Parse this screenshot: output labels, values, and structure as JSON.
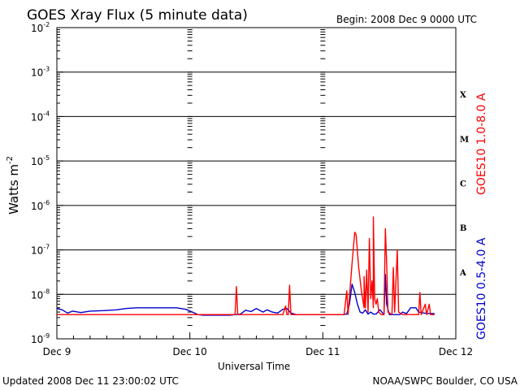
{
  "chart_data": {
    "type": "line",
    "title": "GOES Xray Flux (5 minute data)",
    "begin_label": "Begin:  2008 Dec 9 0000 UTC",
    "xlabel": "Universal Time",
    "ylabel": "Watts m",
    "ylabel_sup": "-2",
    "scale": "log",
    "ylim": [
      1e-09,
      0.01
    ],
    "y_ticks": [
      {
        "exp": -9,
        "label": "10",
        "sup": "-9"
      },
      {
        "exp": -8,
        "label": "10",
        "sup": "-8"
      },
      {
        "exp": -7,
        "label": "10",
        "sup": "-7"
      },
      {
        "exp": -6,
        "label": "10",
        "sup": "-6"
      },
      {
        "exp": -5,
        "label": "10",
        "sup": "-5"
      },
      {
        "exp": -4,
        "label": "10",
        "sup": "-4"
      },
      {
        "exp": -3,
        "label": "10",
        "sup": "-3"
      },
      {
        "exp": -2,
        "label": "10",
        "sup": "-2"
      }
    ],
    "x_ticks": [
      "Dec 9",
      "Dec 10",
      "Dec 11",
      "Dec 12"
    ],
    "xlim_days": [
      0,
      3
    ],
    "flare_classes": [
      {
        "label": "X",
        "exp": -4
      },
      {
        "label": "M",
        "exp": -5
      },
      {
        "label": "C",
        "exp": -6
      },
      {
        "label": "B",
        "exp": -7
      },
      {
        "label": "A",
        "exp": -8
      }
    ],
    "grid": true,
    "series": [
      {
        "name": "GOES10 1.0-8.0 A",
        "color": "#ff0000",
        "points": [
          [
            0.0,
            3.5e-09
          ],
          [
            0.35,
            3.5e-09
          ],
          [
            0.7,
            3.5e-09
          ],
          [
            1.2,
            3.5e-09
          ],
          [
            1.34,
            3.5e-09
          ],
          [
            1.35,
            1.5e-08
          ],
          [
            1.36,
            3.5e-09
          ],
          [
            1.7,
            3.5e-09
          ],
          [
            1.72,
            5.5e-09
          ],
          [
            1.73,
            3.5e-09
          ],
          [
            1.74,
            3.5e-09
          ],
          [
            1.75,
            1.6e-08
          ],
          [
            1.76,
            3.5e-09
          ],
          [
            2.16,
            3.5e-09
          ],
          [
            2.18,
            1.2e-08
          ],
          [
            2.19,
            3.5e-09
          ],
          [
            2.22,
            5e-08
          ],
          [
            2.24,
            2.5e-07
          ],
          [
            2.25,
            2.2e-07
          ],
          [
            2.27,
            4e-08
          ],
          [
            2.29,
            1.2e-08
          ],
          [
            2.31,
            5e-09
          ],
          [
            2.31,
            2.5e-08
          ],
          [
            2.32,
            5e-09
          ],
          [
            2.33,
            3.5e-08
          ],
          [
            2.34,
            4e-09
          ],
          [
            2.35,
            1.8e-07
          ],
          [
            2.36,
            8e-09
          ],
          [
            2.37,
            2e-08
          ],
          [
            2.38,
            5e-09
          ],
          [
            2.38,
            5.5e-07
          ],
          [
            2.39,
            8e-09
          ],
          [
            2.4,
            6e-09
          ],
          [
            2.41,
            8e-09
          ],
          [
            2.42,
            4e-09
          ],
          [
            2.44,
            3.5e-09
          ],
          [
            2.46,
            3.5e-09
          ],
          [
            2.47,
            3e-07
          ],
          [
            2.48,
            5e-08
          ],
          [
            2.49,
            4e-09
          ],
          [
            2.52,
            3.5e-09
          ],
          [
            2.53,
            4e-08
          ],
          [
            2.54,
            4e-09
          ],
          [
            2.56,
            1e-07
          ],
          [
            2.57,
            4e-09
          ],
          [
            2.6,
            3.5e-09
          ],
          [
            2.66,
            3.5e-09
          ],
          [
            2.72,
            3.5e-09
          ],
          [
            2.73,
            1.1e-08
          ],
          [
            2.74,
            3.5e-09
          ],
          [
            2.77,
            6e-09
          ],
          [
            2.78,
            3.5e-09
          ],
          [
            2.8,
            6e-09
          ],
          [
            2.81,
            3.5e-09
          ],
          [
            2.84,
            3.5e-09
          ]
        ]
      },
      {
        "name": "GOES10 0.5-4.0 A",
        "color": "#0000cc",
        "points": [
          [
            0.0,
            4.8e-09
          ],
          [
            0.04,
            4.5e-09
          ],
          [
            0.08,
            3.8e-09
          ],
          [
            0.12,
            4.2e-09
          ],
          [
            0.18,
            3.9e-09
          ],
          [
            0.25,
            4.2e-09
          ],
          [
            0.35,
            4.3e-09
          ],
          [
            0.45,
            4.5e-09
          ],
          [
            0.52,
            4.8e-09
          ],
          [
            0.6,
            5e-09
          ],
          [
            0.7,
            5e-09
          ],
          [
            0.8,
            5e-09
          ],
          [
            0.9,
            5e-09
          ],
          [
            0.97,
            4.6e-09
          ],
          [
            1.02,
            4e-09
          ],
          [
            1.06,
            3.5e-09
          ],
          [
            1.1,
            3.4e-09
          ],
          [
            1.2,
            3.4e-09
          ],
          [
            1.3,
            3.4e-09
          ],
          [
            1.38,
            3.6e-09
          ],
          [
            1.42,
            4.4e-09
          ],
          [
            1.46,
            4.1e-09
          ],
          [
            1.5,
            4.8e-09
          ],
          [
            1.55,
            4e-09
          ],
          [
            1.58,
            4.5e-09
          ],
          [
            1.62,
            4e-09
          ],
          [
            1.66,
            3.8e-09
          ],
          [
            1.7,
            4.6e-09
          ],
          [
            1.73,
            4.8e-09
          ],
          [
            1.76,
            3.8e-09
          ],
          [
            1.8,
            3.5e-09
          ],
          [
            2.0,
            3.5e-09
          ],
          [
            2.15,
            3.5e-09
          ],
          [
            2.18,
            3.6e-09
          ],
          [
            2.2,
            6e-09
          ],
          [
            2.22,
            1.7e-08
          ],
          [
            2.24,
            1.1e-08
          ],
          [
            2.26,
            6e-09
          ],
          [
            2.28,
            4e-09
          ],
          [
            2.3,
            3.8e-09
          ],
          [
            2.32,
            4.5e-09
          ],
          [
            2.34,
            3.6e-09
          ],
          [
            2.36,
            4e-09
          ],
          [
            2.38,
            3.6e-09
          ],
          [
            2.4,
            3.6e-09
          ],
          [
            2.43,
            4.5e-09
          ],
          [
            2.46,
            3.5e-09
          ],
          [
            2.47,
            2.8e-08
          ],
          [
            2.48,
            6e-09
          ],
          [
            2.5,
            3.5e-09
          ],
          [
            2.55,
            3.5e-09
          ],
          [
            2.58,
            3.5e-09
          ],
          [
            2.6,
            4e-09
          ],
          [
            2.63,
            3.7e-09
          ],
          [
            2.66,
            5e-09
          ],
          [
            2.7,
            5e-09
          ],
          [
            2.72,
            4e-09
          ],
          [
            2.76,
            3.8e-09
          ],
          [
            2.8,
            3.7e-09
          ],
          [
            2.84,
            3.7e-09
          ]
        ]
      }
    ],
    "footer_left": "Updated 2008 Dec 11 23:00:02 UTC",
    "footer_right": "NOAA/SWPC Boulder, CO USA"
  }
}
